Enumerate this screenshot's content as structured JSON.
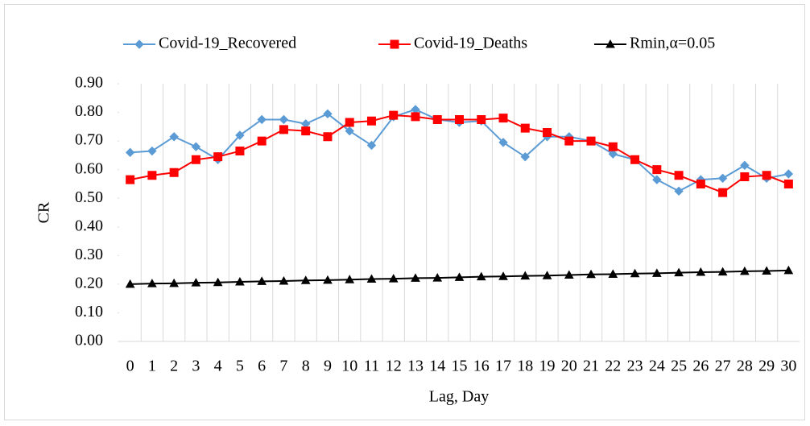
{
  "chart_data": {
    "type": "line",
    "xlabel": "Lag, Day",
    "ylabel": "CR",
    "categories": [
      "0",
      "1",
      "2",
      "3",
      "4",
      "5",
      "6",
      "7",
      "8",
      "9",
      "10",
      "11",
      "12",
      "13",
      "14",
      "15",
      "16",
      "17",
      "18",
      "19",
      "20",
      "21",
      "22",
      "23",
      "24",
      "25",
      "26",
      "27",
      "28",
      "29",
      "30"
    ],
    "series": [
      {
        "name": "Covid-19_Recovered",
        "color": "#5b9bd5",
        "marker": "diamond",
        "values": [
          0.66,
          0.665,
          0.715,
          0.68,
          0.635,
          0.72,
          0.775,
          0.775,
          0.76,
          0.795,
          0.735,
          0.685,
          0.785,
          0.81,
          0.775,
          0.765,
          0.77,
          0.695,
          0.645,
          0.715,
          0.715,
          0.7,
          0.655,
          0.635,
          0.565,
          0.525,
          0.565,
          0.57,
          0.615,
          0.57,
          0.585
        ]
      },
      {
        "name": "Covid-19_Deaths",
        "color": "#ff0000",
        "marker": "square",
        "values": [
          0.565,
          0.58,
          0.59,
          0.635,
          0.645,
          0.665,
          0.7,
          0.74,
          0.735,
          0.715,
          0.765,
          0.77,
          0.79,
          0.785,
          0.775,
          0.775,
          0.775,
          0.78,
          0.745,
          0.73,
          0.7,
          0.7,
          0.68,
          0.635,
          0.6,
          0.58,
          0.55,
          0.52,
          0.575,
          0.58,
          0.55
        ]
      },
      {
        "name": "Rmin,α=0.05",
        "color": "#000000",
        "marker": "triangle",
        "values": [
          0.2,
          0.202,
          0.203,
          0.205,
          0.206,
          0.208,
          0.21,
          0.211,
          0.213,
          0.214,
          0.216,
          0.218,
          0.219,
          0.221,
          0.222,
          0.224,
          0.226,
          0.227,
          0.229,
          0.23,
          0.232,
          0.234,
          0.235,
          0.237,
          0.238,
          0.24,
          0.242,
          0.243,
          0.245,
          0.246,
          0.248
        ]
      }
    ],
    "ylim": [
      0,
      0.9
    ],
    "yticks": [
      {
        "value": 0,
        "label": "0.00"
      },
      {
        "value": 0.1,
        "label": "0.10"
      },
      {
        "value": 0.2,
        "label": "0.20"
      },
      {
        "value": 0.3,
        "label": "0.30"
      },
      {
        "value": 0.4,
        "label": "0.40"
      },
      {
        "value": 0.5,
        "label": "0.50"
      },
      {
        "value": 0.6,
        "label": "0.60"
      },
      {
        "value": 0.7,
        "label": "0.70"
      },
      {
        "value": 0.8,
        "label": "0.80"
      },
      {
        "value": 0.9,
        "label": "0.90"
      }
    ],
    "grid": true,
    "legend": "top"
  }
}
